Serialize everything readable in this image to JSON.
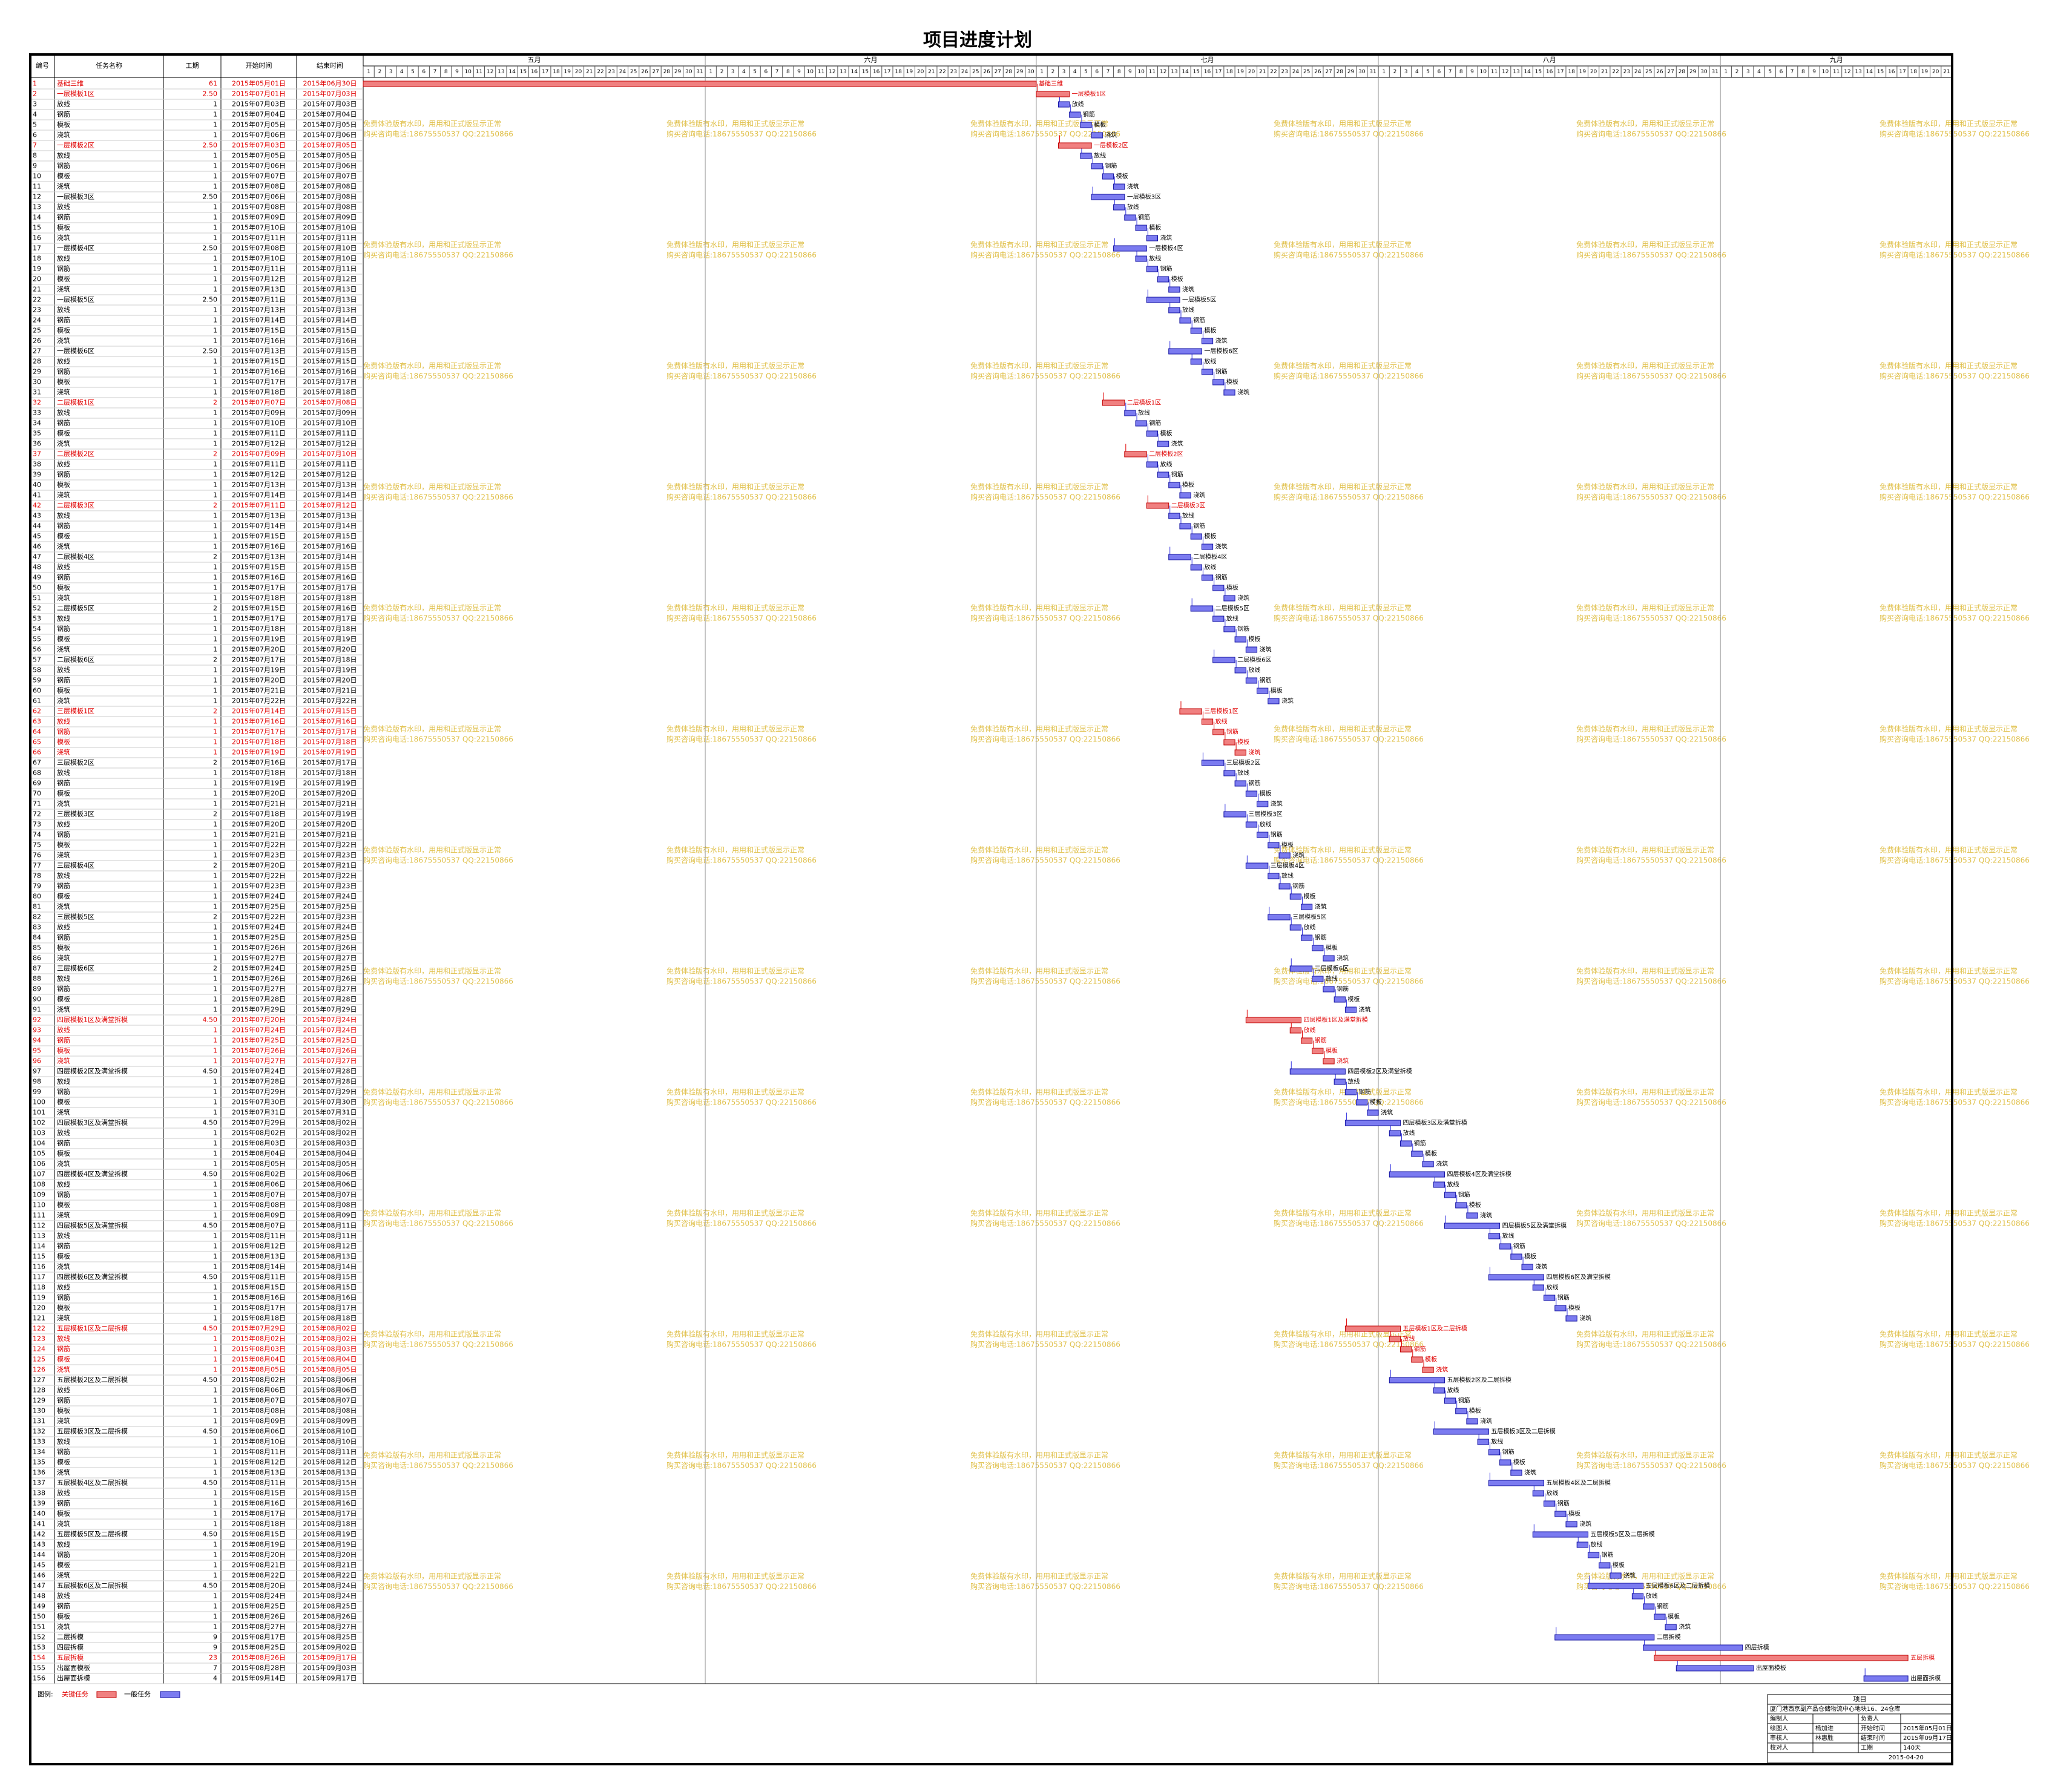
{
  "title": "项目进度计划",
  "table": {
    "headers": [
      "编号",
      "任务名称",
      "工期",
      "开始时间",
      "结束时间"
    ],
    "rows": [
      [
        "1",
        "基础三维",
        "61",
        "2015年05月01日",
        "2015年06月30日",
        true
      ],
      [
        "2",
        "一层模板1区",
        "2.50",
        "2015年07月01日",
        "2015年07月03日",
        true
      ],
      [
        "3",
        "放线",
        "1",
        "2015年07月03日",
        "2015年07月03日"
      ],
      [
        "4",
        "钢筋",
        "1",
        "2015年07月04日",
        "2015年07月04日"
      ],
      [
        "5",
        "模板",
        "1",
        "2015年07月05日",
        "2015年07月05日"
      ],
      [
        "6",
        "浇筑",
        "1",
        "2015年07月06日",
        "2015年07月06日"
      ],
      [
        "7",
        "一层模板2区",
        "2.50",
        "2015年07月03日",
        "2015年07月05日",
        true
      ],
      [
        "8",
        "放线",
        "1",
        "2015年07月05日",
        "2015年07月05日"
      ],
      [
        "9",
        "钢筋",
        "1",
        "2015年07月06日",
        "2015年07月06日"
      ],
      [
        "10",
        "模板",
        "1",
        "2015年07月07日",
        "2015年07月07日"
      ],
      [
        "11",
        "浇筑",
        "1",
        "2015年07月08日",
        "2015年07月08日"
      ],
      [
        "12",
        "一层模板3区",
        "2.50",
        "2015年07月06日",
        "2015年07月08日"
      ],
      [
        "13",
        "放线",
        "1",
        "2015年07月08日",
        "2015年07月08日"
      ],
      [
        "14",
        "钢筋",
        "1",
        "2015年07月09日",
        "2015年07月09日"
      ],
      [
        "15",
        "模板",
        "1",
        "2015年07月10日",
        "2015年07月10日"
      ],
      [
        "16",
        "浇筑",
        "1",
        "2015年07月11日",
        "2015年07月11日"
      ],
      [
        "17",
        "一层模板4区",
        "2.50",
        "2015年07月08日",
        "2015年07月10日"
      ],
      [
        "18",
        "放线",
        "1",
        "2015年07月10日",
        "2015年07月10日"
      ],
      [
        "19",
        "钢筋",
        "1",
        "2015年07月11日",
        "2015年07月11日"
      ],
      [
        "20",
        "模板",
        "1",
        "2015年07月12日",
        "2015年07月12日"
      ],
      [
        "21",
        "浇筑",
        "1",
        "2015年07月13日",
        "2015年07月13日"
      ],
      [
        "22",
        "一层模板5区",
        "2.50",
        "2015年07月11日",
        "2015年07月13日"
      ],
      [
        "23",
        "放线",
        "1",
        "2015年07月13日",
        "2015年07月13日"
      ],
      [
        "24",
        "钢筋",
        "1",
        "2015年07月14日",
        "2015年07月14日"
      ],
      [
        "25",
        "模板",
        "1",
        "2015年07月15日",
        "2015年07月15日"
      ],
      [
        "26",
        "浇筑",
        "1",
        "2015年07月16日",
        "2015年07月16日"
      ],
      [
        "27",
        "一层模板6区",
        "2.50",
        "2015年07月13日",
        "2015年07月15日"
      ],
      [
        "28",
        "放线",
        "1",
        "2015年07月15日",
        "2015年07月15日"
      ],
      [
        "29",
        "钢筋",
        "1",
        "2015年07月16日",
        "2015年07月16日"
      ],
      [
        "30",
        "模板",
        "1",
        "2015年07月17日",
        "2015年07月17日"
      ],
      [
        "31",
        "浇筑",
        "1",
        "2015年07月18日",
        "2015年07月18日"
      ],
      [
        "32",
        "二层模板1区",
        "2",
        "2015年07月07日",
        "2015年07月08日",
        true
      ],
      [
        "33",
        "放线",
        "1",
        "2015年07月09日",
        "2015年07月09日"
      ],
      [
        "34",
        "钢筋",
        "1",
        "2015年07月10日",
        "2015年07月10日"
      ],
      [
        "35",
        "模板",
        "1",
        "2015年07月11日",
        "2015年07月11日"
      ],
      [
        "36",
        "浇筑",
        "1",
        "2015年07月12日",
        "2015年07月12日"
      ],
      [
        "37",
        "二层模板2区",
        "2",
        "2015年07月09日",
        "2015年07月10日",
        true
      ],
      [
        "38",
        "放线",
        "1",
        "2015年07月11日",
        "2015年07月11日"
      ],
      [
        "39",
        "钢筋",
        "1",
        "2015年07月12日",
        "2015年07月12日"
      ],
      [
        "40",
        "模板",
        "1",
        "2015年07月13日",
        "2015年07月13日"
      ],
      [
        "41",
        "浇筑",
        "1",
        "2015年07月14日",
        "2015年07月14日"
      ],
      [
        "42",
        "二层模板3区",
        "2",
        "2015年07月11日",
        "2015年07月12日",
        true
      ],
      [
        "43",
        "放线",
        "1",
        "2015年07月13日",
        "2015年07月13日"
      ],
      [
        "44",
        "钢筋",
        "1",
        "2015年07月14日",
        "2015年07月14日"
      ],
      [
        "45",
        "模板",
        "1",
        "2015年07月15日",
        "2015年07月15日"
      ],
      [
        "46",
        "浇筑",
        "1",
        "2015年07月16日",
        "2015年07月16日"
      ],
      [
        "47",
        "二层模板4区",
        "2",
        "2015年07月13日",
        "2015年07月14日"
      ],
      [
        "48",
        "放线",
        "1",
        "2015年07月15日",
        "2015年07月15日"
      ],
      [
        "49",
        "钢筋",
        "1",
        "2015年07月16日",
        "2015年07月16日"
      ],
      [
        "50",
        "模板",
        "1",
        "2015年07月17日",
        "2015年07月17日"
      ],
      [
        "51",
        "浇筑",
        "1",
        "2015年07月18日",
        "2015年07月18日"
      ],
      [
        "52",
        "二层模板5区",
        "2",
        "2015年07月15日",
        "2015年07月16日"
      ],
      [
        "53",
        "放线",
        "1",
        "2015年07月17日",
        "2015年07月17日"
      ],
      [
        "54",
        "钢筋",
        "1",
        "2015年07月18日",
        "2015年07月18日"
      ],
      [
        "55",
        "模板",
        "1",
        "2015年07月19日",
        "2015年07月19日"
      ],
      [
        "56",
        "浇筑",
        "1",
        "2015年07月20日",
        "2015年07月20日"
      ],
      [
        "57",
        "二层模板6区",
        "2",
        "2015年07月17日",
        "2015年07月18日"
      ],
      [
        "58",
        "放线",
        "1",
        "2015年07月19日",
        "2015年07月19日"
      ],
      [
        "59",
        "钢筋",
        "1",
        "2015年07月20日",
        "2015年07月20日"
      ],
      [
        "60",
        "模板",
        "1",
        "2015年07月21日",
        "2015年07月21日"
      ],
      [
        "61",
        "浇筑",
        "1",
        "2015年07月22日",
        "2015年07月22日"
      ],
      [
        "62",
        "三层模板1区",
        "2",
        "2015年07月14日",
        "2015年07月15日",
        true
      ],
      [
        "63",
        "放线",
        "1",
        "2015年07月16日",
        "2015年07月16日",
        true
      ],
      [
        "64",
        "钢筋",
        "1",
        "2015年07月17日",
        "2015年07月17日",
        true
      ],
      [
        "65",
        "模板",
        "1",
        "2015年07月18日",
        "2015年07月18日",
        true
      ],
      [
        "66",
        "浇筑",
        "1",
        "2015年07月19日",
        "2015年07月19日",
        true
      ],
      [
        "67",
        "三层模板2区",
        "2",
        "2015年07月16日",
        "2015年07月17日"
      ],
      [
        "68",
        "放线",
        "1",
        "2015年07月18日",
        "2015年07月18日"
      ],
      [
        "69",
        "钢筋",
        "1",
        "2015年07月19日",
        "2015年07月19日"
      ],
      [
        "70",
        "模板",
        "1",
        "2015年07月20日",
        "2015年07月20日"
      ],
      [
        "71",
        "浇筑",
        "1",
        "2015年07月21日",
        "2015年07月21日"
      ],
      [
        "72",
        "三层模板3区",
        "2",
        "2015年07月18日",
        "2015年07月19日"
      ],
      [
        "73",
        "放线",
        "1",
        "2015年07月20日",
        "2015年07月20日"
      ],
      [
        "74",
        "钢筋",
        "1",
        "2015年07月21日",
        "2015年07月21日"
      ],
      [
        "75",
        "模板",
        "1",
        "2015年07月22日",
        "2015年07月22日"
      ],
      [
        "76",
        "浇筑",
        "1",
        "2015年07月23日",
        "2015年07月23日"
      ],
      [
        "77",
        "三层模板4区",
        "2",
        "2015年07月20日",
        "2015年07月21日"
      ],
      [
        "78",
        "放线",
        "1",
        "2015年07月22日",
        "2015年07月22日"
      ],
      [
        "79",
        "钢筋",
        "1",
        "2015年07月23日",
        "2015年07月23日"
      ],
      [
        "80",
        "模板",
        "1",
        "2015年07月24日",
        "2015年07月24日"
      ],
      [
        "81",
        "浇筑",
        "1",
        "2015年07月25日",
        "2015年07月25日"
      ],
      [
        "82",
        "三层模板5区",
        "2",
        "2015年07月22日",
        "2015年07月23日"
      ],
      [
        "83",
        "放线",
        "1",
        "2015年07月24日",
        "2015年07月24日"
      ],
      [
        "84",
        "钢筋",
        "1",
        "2015年07月25日",
        "2015年07月25日"
      ],
      [
        "85",
        "模板",
        "1",
        "2015年07月26日",
        "2015年07月26日"
      ],
      [
        "86",
        "浇筑",
        "1",
        "2015年07月27日",
        "2015年07月27日"
      ],
      [
        "87",
        "三层模板6区",
        "2",
        "2015年07月24日",
        "2015年07月25日"
      ],
      [
        "88",
        "放线",
        "1",
        "2015年07月26日",
        "2015年07月26日"
      ],
      [
        "89",
        "钢筋",
        "1",
        "2015年07月27日",
        "2015年07月27日"
      ],
      [
        "90",
        "模板",
        "1",
        "2015年07月28日",
        "2015年07月28日"
      ],
      [
        "91",
        "浇筑",
        "1",
        "2015年07月29日",
        "2015年07月29日"
      ],
      [
        "92",
        "四层模板1区及满堂拆模",
        "4.50",
        "2015年07月20日",
        "2015年07月24日",
        true
      ],
      [
        "93",
        "放线",
        "1",
        "2015年07月24日",
        "2015年07月24日",
        true
      ],
      [
        "94",
        "钢筋",
        "1",
        "2015年07月25日",
        "2015年07月25日",
        true
      ],
      [
        "95",
        "模板",
        "1",
        "2015年07月26日",
        "2015年07月26日",
        true
      ],
      [
        "96",
        "浇筑",
        "1",
        "2015年07月27日",
        "2015年07月27日",
        true
      ],
      [
        "97",
        "四层模板2区及满堂拆模",
        "4.50",
        "2015年07月24日",
        "2015年07月28日"
      ],
      [
        "98",
        "放线",
        "1",
        "2015年07月28日",
        "2015年07月28日"
      ],
      [
        "99",
        "钢筋",
        "1",
        "2015年07月29日",
        "2015年07月29日"
      ],
      [
        "100",
        "模板",
        "1",
        "2015年07月30日",
        "2015年07月30日"
      ],
      [
        "101",
        "浇筑",
        "1",
        "2015年07月31日",
        "2015年07月31日"
      ],
      [
        "102",
        "四层模板3区及满堂拆模",
        "4.50",
        "2015年07月29日",
        "2015年08月02日"
      ],
      [
        "103",
        "放线",
        "1",
        "2015年08月02日",
        "2015年08月02日"
      ],
      [
        "104",
        "钢筋",
        "1",
        "2015年08月03日",
        "2015年08月03日"
      ],
      [
        "105",
        "模板",
        "1",
        "2015年08月04日",
        "2015年08月04日"
      ],
      [
        "106",
        "浇筑",
        "1",
        "2015年08月05日",
        "2015年08月05日"
      ],
      [
        "107",
        "四层模板4区及满堂拆模",
        "4.50",
        "2015年08月02日",
        "2015年08月06日"
      ],
      [
        "108",
        "放线",
        "1",
        "2015年08月06日",
        "2015年08月06日"
      ],
      [
        "109",
        "钢筋",
        "1",
        "2015年08月07日",
        "2015年08月07日"
      ],
      [
        "110",
        "模板",
        "1",
        "2015年08月08日",
        "2015年08月08日"
      ],
      [
        "111",
        "浇筑",
        "1",
        "2015年08月09日",
        "2015年08月09日"
      ],
      [
        "112",
        "四层模板5区及满堂拆模",
        "4.50",
        "2015年08月07日",
        "2015年08月11日"
      ],
      [
        "113",
        "放线",
        "1",
        "2015年08月11日",
        "2015年08月11日"
      ],
      [
        "114",
        "钢筋",
        "1",
        "2015年08月12日",
        "2015年08月12日"
      ],
      [
        "115",
        "模板",
        "1",
        "2015年08月13日",
        "2015年08月13日"
      ],
      [
        "116",
        "浇筑",
        "1",
        "2015年08月14日",
        "2015年08月14日"
      ],
      [
        "117",
        "四层模板6区及满堂拆模",
        "4.50",
        "2015年08月11日",
        "2015年08月15日"
      ],
      [
        "118",
        "放线",
        "1",
        "2015年08月15日",
        "2015年08月15日"
      ],
      [
        "119",
        "钢筋",
        "1",
        "2015年08月16日",
        "2015年08月16日"
      ],
      [
        "120",
        "模板",
        "1",
        "2015年08月17日",
        "2015年08月17日"
      ],
      [
        "121",
        "浇筑",
        "1",
        "2015年08月18日",
        "2015年08月18日"
      ],
      [
        "122",
        "五层模板1区及二层拆模",
        "4.50",
        "2015年07月29日",
        "2015年08月02日",
        true
      ],
      [
        "123",
        "放线",
        "1",
        "2015年08月02日",
        "2015年08月02日",
        true
      ],
      [
        "124",
        "钢筋",
        "1",
        "2015年08月03日",
        "2015年08月03日",
        true
      ],
      [
        "125",
        "模板",
        "1",
        "2015年08月04日",
        "2015年08月04日",
        true
      ],
      [
        "126",
        "浇筑",
        "1",
        "2015年08月05日",
        "2015年08月05日",
        true
      ],
      [
        "127",
        "五层模板2区及二层拆模",
        "4.50",
        "2015年08月02日",
        "2015年08月06日"
      ],
      [
        "128",
        "放线",
        "1",
        "2015年08月06日",
        "2015年08月06日"
      ],
      [
        "129",
        "钢筋",
        "1",
        "2015年08月07日",
        "2015年08月07日"
      ],
      [
        "130",
        "模板",
        "1",
        "2015年08月08日",
        "2015年08月08日"
      ],
      [
        "131",
        "浇筑",
        "1",
        "2015年08月09日",
        "2015年08月09日"
      ],
      [
        "132",
        "五层模板3区及二层拆模",
        "4.50",
        "2015年08月06日",
        "2015年08月10日"
      ],
      [
        "133",
        "放线",
        "1",
        "2015年08月10日",
        "2015年08月10日"
      ],
      [
        "134",
        "钢筋",
        "1",
        "2015年08月11日",
        "2015年08月11日"
      ],
      [
        "135",
        "模板",
        "1",
        "2015年08月12日",
        "2015年08月12日"
      ],
      [
        "136",
        "浇筑",
        "1",
        "2015年08月13日",
        "2015年08月13日"
      ],
      [
        "137",
        "五层模板4区及二层拆模",
        "4.50",
        "2015年08月11日",
        "2015年08月15日"
      ],
      [
        "138",
        "放线",
        "1",
        "2015年08月15日",
        "2015年08月15日"
      ],
      [
        "139",
        "钢筋",
        "1",
        "2015年08月16日",
        "2015年08月16日"
      ],
      [
        "140",
        "模板",
        "1",
        "2015年08月17日",
        "2015年08月17日"
      ],
      [
        "141",
        "浇筑",
        "1",
        "2015年08月18日",
        "2015年08月18日"
      ],
      [
        "142",
        "五层模板5区及二层拆模",
        "4.50",
        "2015年08月15日",
        "2015年08月19日"
      ],
      [
        "143",
        "放线",
        "1",
        "2015年08月19日",
        "2015年08月19日"
      ],
      [
        "144",
        "钢筋",
        "1",
        "2015年08月20日",
        "2015年08月20日"
      ],
      [
        "145",
        "模板",
        "1",
        "2015年08月21日",
        "2015年08月21日"
      ],
      [
        "146",
        "浇筑",
        "1",
        "2015年08月22日",
        "2015年08月22日"
      ],
      [
        "147",
        "五层模板6区及二层拆模",
        "4.50",
        "2015年08月20日",
        "2015年08月24日"
      ],
      [
        "148",
        "放线",
        "1",
        "2015年08月24日",
        "2015年08月24日"
      ],
      [
        "149",
        "钢筋",
        "1",
        "2015年08月25日",
        "2015年08月25日"
      ],
      [
        "150",
        "模板",
        "1",
        "2015年08月26日",
        "2015年08月26日"
      ],
      [
        "151",
        "浇筑",
        "1",
        "2015年08月27日",
        "2015年08月27日"
      ],
      [
        "152",
        "二层拆模",
        "9",
        "2015年08月17日",
        "2015年08月25日"
      ],
      [
        "153",
        "四层拆模",
        "9",
        "2015年08月25日",
        "2015年09月02日"
      ],
      [
        "154",
        "五层拆模",
        "23",
        "2015年08月26日",
        "2015年09月17日",
        true
      ],
      [
        "155",
        "出屋面模板",
        "7",
        "2015年08月28日",
        "2015年09月03日"
      ],
      [
        "156",
        "出屋面拆模",
        "4",
        "2015年09月14日",
        "2015年09月17日"
      ]
    ]
  },
  "timeline": [
    {
      "month": "五月",
      "days": [
        1,
        2,
        3,
        4,
        5,
        6,
        7,
        8,
        9,
        10,
        11,
        12,
        13,
        14,
        15,
        16,
        17,
        18,
        19,
        20,
        21,
        22,
        23,
        24,
        25,
        26,
        27,
        28,
        29,
        30,
        31
      ]
    },
    {
      "month": "六月",
      "days": [
        1,
        2,
        3,
        4,
        5,
        6,
        7,
        8,
        9,
        10,
        11,
        12,
        13,
        14,
        15,
        16,
        17,
        18,
        19,
        20,
        21,
        22,
        23,
        24,
        25,
        26,
        27,
        28,
        29,
        30
      ]
    },
    {
      "month": "七月",
      "days": [
        1,
        2,
        3,
        4,
        5,
        6,
        7,
        8,
        9,
        10,
        11,
        12,
        13,
        14,
        15,
        16,
        17,
        18,
        19,
        20,
        21,
        22,
        23,
        24,
        25,
        26,
        27,
        28,
        29,
        30,
        31
      ]
    },
    {
      "month": "八月",
      "days": [
        1,
        2,
        3,
        4,
        5,
        6,
        7,
        8,
        9,
        10,
        11,
        12,
        13,
        14,
        15,
        16,
        17,
        18,
        19,
        20,
        21,
        22,
        23,
        24,
        25,
        26,
        27,
        28,
        29,
        30,
        31
      ]
    },
    {
      "month": "九月",
      "days": [
        1,
        2,
        3,
        4,
        5,
        6,
        7,
        8,
        9,
        10,
        11,
        12,
        13,
        14,
        15,
        16,
        17,
        18,
        19,
        20,
        21
      ]
    }
  ],
  "watermark": [
    "免费体验版有水印，用用和正式版显示正常",
    "购买咨询电话:18675550537 QQ:22150866"
  ],
  "legend": {
    "label": "图例:",
    "critical": "关键任务",
    "normal": "一般任务",
    "critical_color": "#f08080",
    "normal_color": "#7b7bf0"
  },
  "info": {
    "header": "项目",
    "project": "厦门港西京副产品仓储物流中心地块16、24仓库",
    "rows": [
      {
        "k1": "编制人",
        "k2": "负责人"
      },
      {
        "k1": "绘图人",
        "v1": "杨加进",
        "k2": "开始时间",
        "v2": "2015年05月01日"
      },
      {
        "k1": "审核人",
        "v1": "林惠胜",
        "k2": "结束时间",
        "v2": "2015年09月17日"
      },
      {
        "k1": "校对人",
        "k2": "工期",
        "v2": "140天"
      }
    ],
    "date": "2015-04-20"
  }
}
